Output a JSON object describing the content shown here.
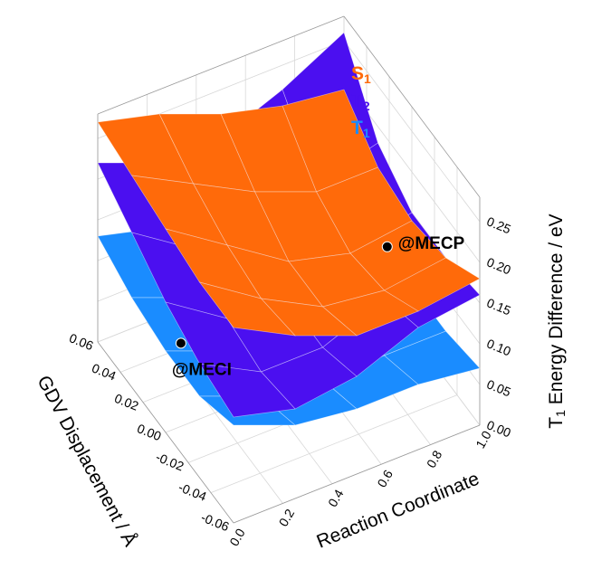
{
  "chart_data": {
    "type": "surface3d",
    "xlabel": "Reaction Coordinate",
    "ylabel": "GDV Displacement / Å",
    "zlabel": {
      "main": "T",
      "sub": "1",
      "rest": " Energy Difference / eV"
    },
    "xlim": [
      0,
      1
    ],
    "ylim": [
      -0.06,
      0.06
    ],
    "zlim": [
      0,
      0.28
    ],
    "xticks": [
      {
        "value": 0,
        "label": "0.0"
      },
      0.2,
      0.4,
      0.6,
      0.8,
      {
        "value": 1,
        "label": "1.0"
      }
    ],
    "yticks": [
      {
        "value": -0.06,
        "label": "-0.06"
      },
      {
        "value": -0.04,
        "label": "-0.04"
      },
      {
        "value": -0.02,
        "label": "-0.02"
      },
      {
        "value": 0,
        "label": "0.00"
      },
      0.02,
      0.04,
      0.06
    ],
    "zticks": [
      {
        "value": 0,
        "label": "0.00"
      },
      0.05,
      {
        "value": 0.1,
        "label": "0.10"
      },
      0.15,
      {
        "value": 0.2,
        "label": "0.20"
      },
      0.25
    ],
    "grid": true,
    "x": [
      0,
      0.25,
      0.5,
      0.75,
      1
    ],
    "y": [
      -0.06,
      -0.03,
      0,
      0.03,
      0.06
    ],
    "series": [
      {
        "name": "T",
        "subscript": "1",
        "color": "#1a8cff",
        "z": [
          [
            0.12,
            0.1,
            0.1,
            0.11,
            0.13
          ],
          [
            0.09,
            0.07,
            0.07,
            0.08,
            0.11
          ],
          [
            0.08,
            0.06,
            0.06,
            0.07,
            0.1
          ],
          [
            0.08,
            0.06,
            0.06,
            0.07,
            0.09
          ],
          [
            0.07,
            0.06,
            0.06,
            0.07,
            0.08
          ]
        ]
      },
      {
        "name": "T",
        "subscript": "2",
        "color": "#4b0ff0",
        "z": [
          [
            0.13,
            0.14,
            0.16,
            0.19,
            0.22
          ],
          [
            0.11,
            0.1,
            0.11,
            0.14,
            0.19
          ],
          [
            0.12,
            0.1,
            0.1,
            0.13,
            0.19
          ],
          [
            0.15,
            0.13,
            0.13,
            0.16,
            0.22
          ],
          [
            0.16,
            0.15,
            0.15,
            0.18,
            0.26
          ]
        ]
      },
      {
        "name": "S",
        "subscript": "1",
        "color": "#ff6a0a",
        "z": [
          [
            0.24,
            0.24,
            0.25,
            0.26,
            0.27
          ],
          [
            0.2,
            0.19,
            0.2,
            0.22,
            0.25
          ],
          [
            0.17,
            0.15,
            0.15,
            0.18,
            0.22
          ],
          [
            0.17,
            0.14,
            0.13,
            0.15,
            0.2
          ],
          [
            0.18,
            0.15,
            0.14,
            0.15,
            0.19
          ]
        ]
      }
    ],
    "annotations": [
      {
        "text": "@MECP",
        "x": 0.9,
        "y": 0,
        "z": 0.12
      },
      {
        "text": "@MECI",
        "x": 0.2,
        "y": 0.03,
        "z": 0.03
      }
    ]
  }
}
